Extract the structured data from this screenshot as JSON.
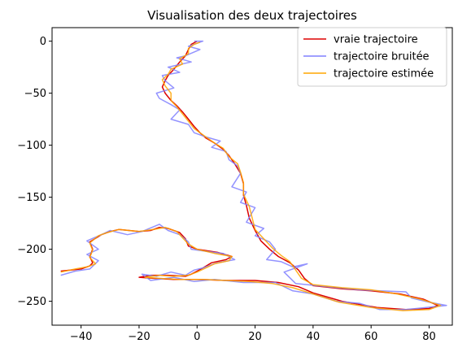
{
  "chart_data": {
    "type": "line",
    "title": "Visualisation des deux trajectoires",
    "xlabel": "",
    "ylabel": "",
    "xlim": [
      -50,
      88
    ],
    "ylim": [
      -273,
      13
    ],
    "xticks": [
      -40,
      -20,
      0,
      20,
      40,
      60,
      80
    ],
    "yticks": [
      0,
      -50,
      -100,
      -150,
      -200,
      -250
    ],
    "grid": false,
    "legend_position": "top-right",
    "series": [
      {
        "name": "vraie trajectoire",
        "color": "#dd0000",
        "points": [
          [
            0,
            0
          ],
          [
            -2,
            -3
          ],
          [
            -3,
            -8
          ],
          [
            -4,
            -14
          ],
          [
            -6,
            -20
          ],
          [
            -8,
            -27
          ],
          [
            -10,
            -33
          ],
          [
            -11,
            -38
          ],
          [
            -12,
            -44
          ],
          [
            -11,
            -50
          ],
          [
            -9,
            -57
          ],
          [
            -7,
            -62
          ],
          [
            -5,
            -68
          ],
          [
            -3,
            -75
          ],
          [
            -1,
            -82
          ],
          [
            1,
            -88
          ],
          [
            3,
            -93
          ],
          [
            6,
            -98
          ],
          [
            9,
            -104
          ],
          [
            11,
            -110
          ],
          [
            13,
            -118
          ],
          [
            15,
            -127
          ],
          [
            16,
            -137
          ],
          [
            16,
            -148
          ],
          [
            17,
            -158
          ],
          [
            18,
            -170
          ],
          [
            20,
            -182
          ],
          [
            22,
            -192
          ],
          [
            25,
            -200
          ],
          [
            28,
            -207
          ],
          [
            32,
            -213
          ],
          [
            35,
            -220
          ],
          [
            37,
            -228
          ],
          [
            40,
            -235
          ],
          [
            50,
            -238
          ],
          [
            60,
            -240
          ],
          [
            70,
            -243
          ],
          [
            78,
            -248
          ],
          [
            83,
            -254
          ],
          [
            80,
            -257
          ],
          [
            72,
            -258
          ],
          [
            62,
            -256
          ],
          [
            50,
            -250
          ],
          [
            40,
            -242
          ],
          [
            35,
            -236
          ],
          [
            28,
            -232
          ],
          [
            20,
            -230
          ],
          [
            10,
            -230
          ],
          [
            0,
            -229
          ],
          [
            -8,
            -229
          ],
          [
            -15,
            -228
          ],
          [
            -20,
            -227
          ],
          [
            -16,
            -225
          ],
          [
            -10,
            -225
          ],
          [
            -4,
            -226
          ],
          [
            -2,
            -224
          ],
          [
            0,
            -221
          ],
          [
            2,
            -218
          ],
          [
            5,
            -213
          ],
          [
            10,
            -210
          ],
          [
            12,
            -207
          ],
          [
            7,
            -203
          ],
          [
            0,
            -200
          ],
          [
            -3,
            -197
          ],
          [
            -4,
            -190
          ],
          [
            -6,
            -184
          ],
          [
            -10,
            -180
          ],
          [
            -13,
            -179
          ],
          [
            -16,
            -182
          ],
          [
            -20,
            -183
          ],
          [
            -27,
            -181
          ],
          [
            -30,
            -183
          ],
          [
            -33,
            -186
          ],
          [
            -37,
            -193
          ],
          [
            -36,
            -200
          ],
          [
            -37,
            -207
          ],
          [
            -36,
            -213
          ],
          [
            -37,
            -216
          ],
          [
            -40,
            -219
          ],
          [
            -47,
            -221
          ]
        ]
      },
      {
        "name": "trajectoire bruitée",
        "color": "#8080ff",
        "points": [
          [
            -1,
            0
          ],
          [
            2,
            0
          ],
          [
            -3,
            -5
          ],
          [
            1,
            -8
          ],
          [
            -4,
            -14
          ],
          [
            -7,
            -16
          ],
          [
            -2,
            -20
          ],
          [
            -10,
            -25
          ],
          [
            -6,
            -30
          ],
          [
            -12,
            -33
          ],
          [
            -11,
            -38
          ],
          [
            -8,
            -45
          ],
          [
            -14,
            -50
          ],
          [
            -13,
            -55
          ],
          [
            -9,
            -61
          ],
          [
            -6,
            -66
          ],
          [
            -9,
            -75
          ],
          [
            -3,
            -80
          ],
          [
            -1,
            -88
          ],
          [
            3,
            -92
          ],
          [
            8,
            -96
          ],
          [
            5,
            -102
          ],
          [
            10,
            -106
          ],
          [
            11,
            -114
          ],
          [
            14,
            -120
          ],
          [
            15,
            -127
          ],
          [
            12,
            -140
          ],
          [
            17,
            -145
          ],
          [
            15,
            -155
          ],
          [
            20,
            -160
          ],
          [
            17,
            -174
          ],
          [
            23,
            -180
          ],
          [
            20,
            -187
          ],
          [
            25,
            -193
          ],
          [
            27,
            -200
          ],
          [
            24,
            -210
          ],
          [
            29,
            -212
          ],
          [
            33,
            -217
          ],
          [
            38,
            -214
          ],
          [
            30,
            -222
          ],
          [
            34,
            -233
          ],
          [
            45,
            -236
          ],
          [
            56,
            -239
          ],
          [
            63,
            -240
          ],
          [
            72,
            -241
          ],
          [
            74,
            -247
          ],
          [
            80,
            -251
          ],
          [
            86,
            -254
          ],
          [
            79,
            -256
          ],
          [
            72,
            -258
          ],
          [
            63,
            -258
          ],
          [
            56,
            -252
          ],
          [
            48,
            -250
          ],
          [
            40,
            -243
          ],
          [
            33,
            -240
          ],
          [
            27,
            -232
          ],
          [
            16,
            -232
          ],
          [
            6,
            -229
          ],
          [
            -1,
            -231
          ],
          [
            -8,
            -227
          ],
          [
            -16,
            -230
          ],
          [
            -19,
            -224
          ],
          [
            -14,
            -226
          ],
          [
            -9,
            -222
          ],
          [
            -4,
            -225
          ],
          [
            -1,
            -220
          ],
          [
            2,
            -218
          ],
          [
            7,
            -213
          ],
          [
            13,
            -210
          ],
          [
            9,
            -204
          ],
          [
            3,
            -202
          ],
          [
            -2,
            -200
          ],
          [
            -3,
            -193
          ],
          [
            -6,
            -186
          ],
          [
            -10,
            -182
          ],
          [
            -13,
            -176
          ],
          [
            -19,
            -183
          ],
          [
            -24,
            -186
          ],
          [
            -30,
            -182
          ],
          [
            -33,
            -186
          ],
          [
            -38,
            -192
          ],
          [
            -34,
            -200
          ],
          [
            -38,
            -205
          ],
          [
            -34,
            -211
          ],
          [
            -37,
            -219
          ],
          [
            -42,
            -221
          ],
          [
            -47,
            -225
          ]
        ]
      },
      {
        "name": "trajectoire estimée",
        "color": "#ffa500",
        "points": [
          [
            1,
            -1
          ],
          [
            -1,
            -3
          ],
          [
            -3,
            -7
          ],
          [
            -3,
            -12
          ],
          [
            -6,
            -17
          ],
          [
            -5,
            -22
          ],
          [
            -9,
            -27
          ],
          [
            -10,
            -32
          ],
          [
            -12,
            -37
          ],
          [
            -11,
            -43
          ],
          [
            -9,
            -50
          ],
          [
            -9,
            -57
          ],
          [
            -7,
            -63
          ],
          [
            -5,
            -70
          ],
          [
            -3,
            -77
          ],
          [
            -1,
            -84
          ],
          [
            1,
            -88
          ],
          [
            4,
            -94
          ],
          [
            6,
            -98
          ],
          [
            9,
            -103
          ],
          [
            11,
            -111
          ],
          [
            14,
            -118
          ],
          [
            15,
            -126
          ],
          [
            16,
            -136
          ],
          [
            16,
            -147
          ],
          [
            18,
            -159
          ],
          [
            19,
            -170
          ],
          [
            20,
            -181
          ],
          [
            23,
            -190
          ],
          [
            26,
            -199
          ],
          [
            29,
            -206
          ],
          [
            32,
            -212
          ],
          [
            34,
            -220
          ],
          [
            36,
            -228
          ],
          [
            40,
            -234
          ],
          [
            50,
            -237
          ],
          [
            60,
            -239
          ],
          [
            69,
            -243
          ],
          [
            77,
            -248
          ],
          [
            84,
            -254
          ],
          [
            80,
            -258
          ],
          [
            71,
            -259
          ],
          [
            60,
            -256
          ],
          [
            49,
            -251
          ],
          [
            40,
            -243
          ],
          [
            33,
            -237
          ],
          [
            26,
            -233
          ],
          [
            18,
            -231
          ],
          [
            10,
            -230
          ],
          [
            2,
            -229
          ],
          [
            -6,
            -229
          ],
          [
            -13,
            -228
          ],
          [
            -18,
            -227
          ],
          [
            -13,
            -225
          ],
          [
            -8,
            -226
          ],
          [
            -3,
            -225
          ],
          [
            0,
            -222
          ],
          [
            3,
            -218
          ],
          [
            6,
            -214
          ],
          [
            11,
            -211
          ],
          [
            12,
            -207
          ],
          [
            6,
            -204
          ],
          [
            0,
            -200
          ],
          [
            -3,
            -195
          ],
          [
            -5,
            -189
          ],
          [
            -7,
            -183
          ],
          [
            -11,
            -179
          ],
          [
            -15,
            -181
          ],
          [
            -20,
            -183
          ],
          [
            -27,
            -181
          ],
          [
            -31,
            -184
          ],
          [
            -34,
            -187
          ],
          [
            -37,
            -194
          ],
          [
            -36,
            -201
          ],
          [
            -37,
            -208
          ],
          [
            -35,
            -214
          ],
          [
            -38,
            -217
          ],
          [
            -42,
            -219
          ],
          [
            -47,
            -222
          ]
        ]
      }
    ]
  }
}
